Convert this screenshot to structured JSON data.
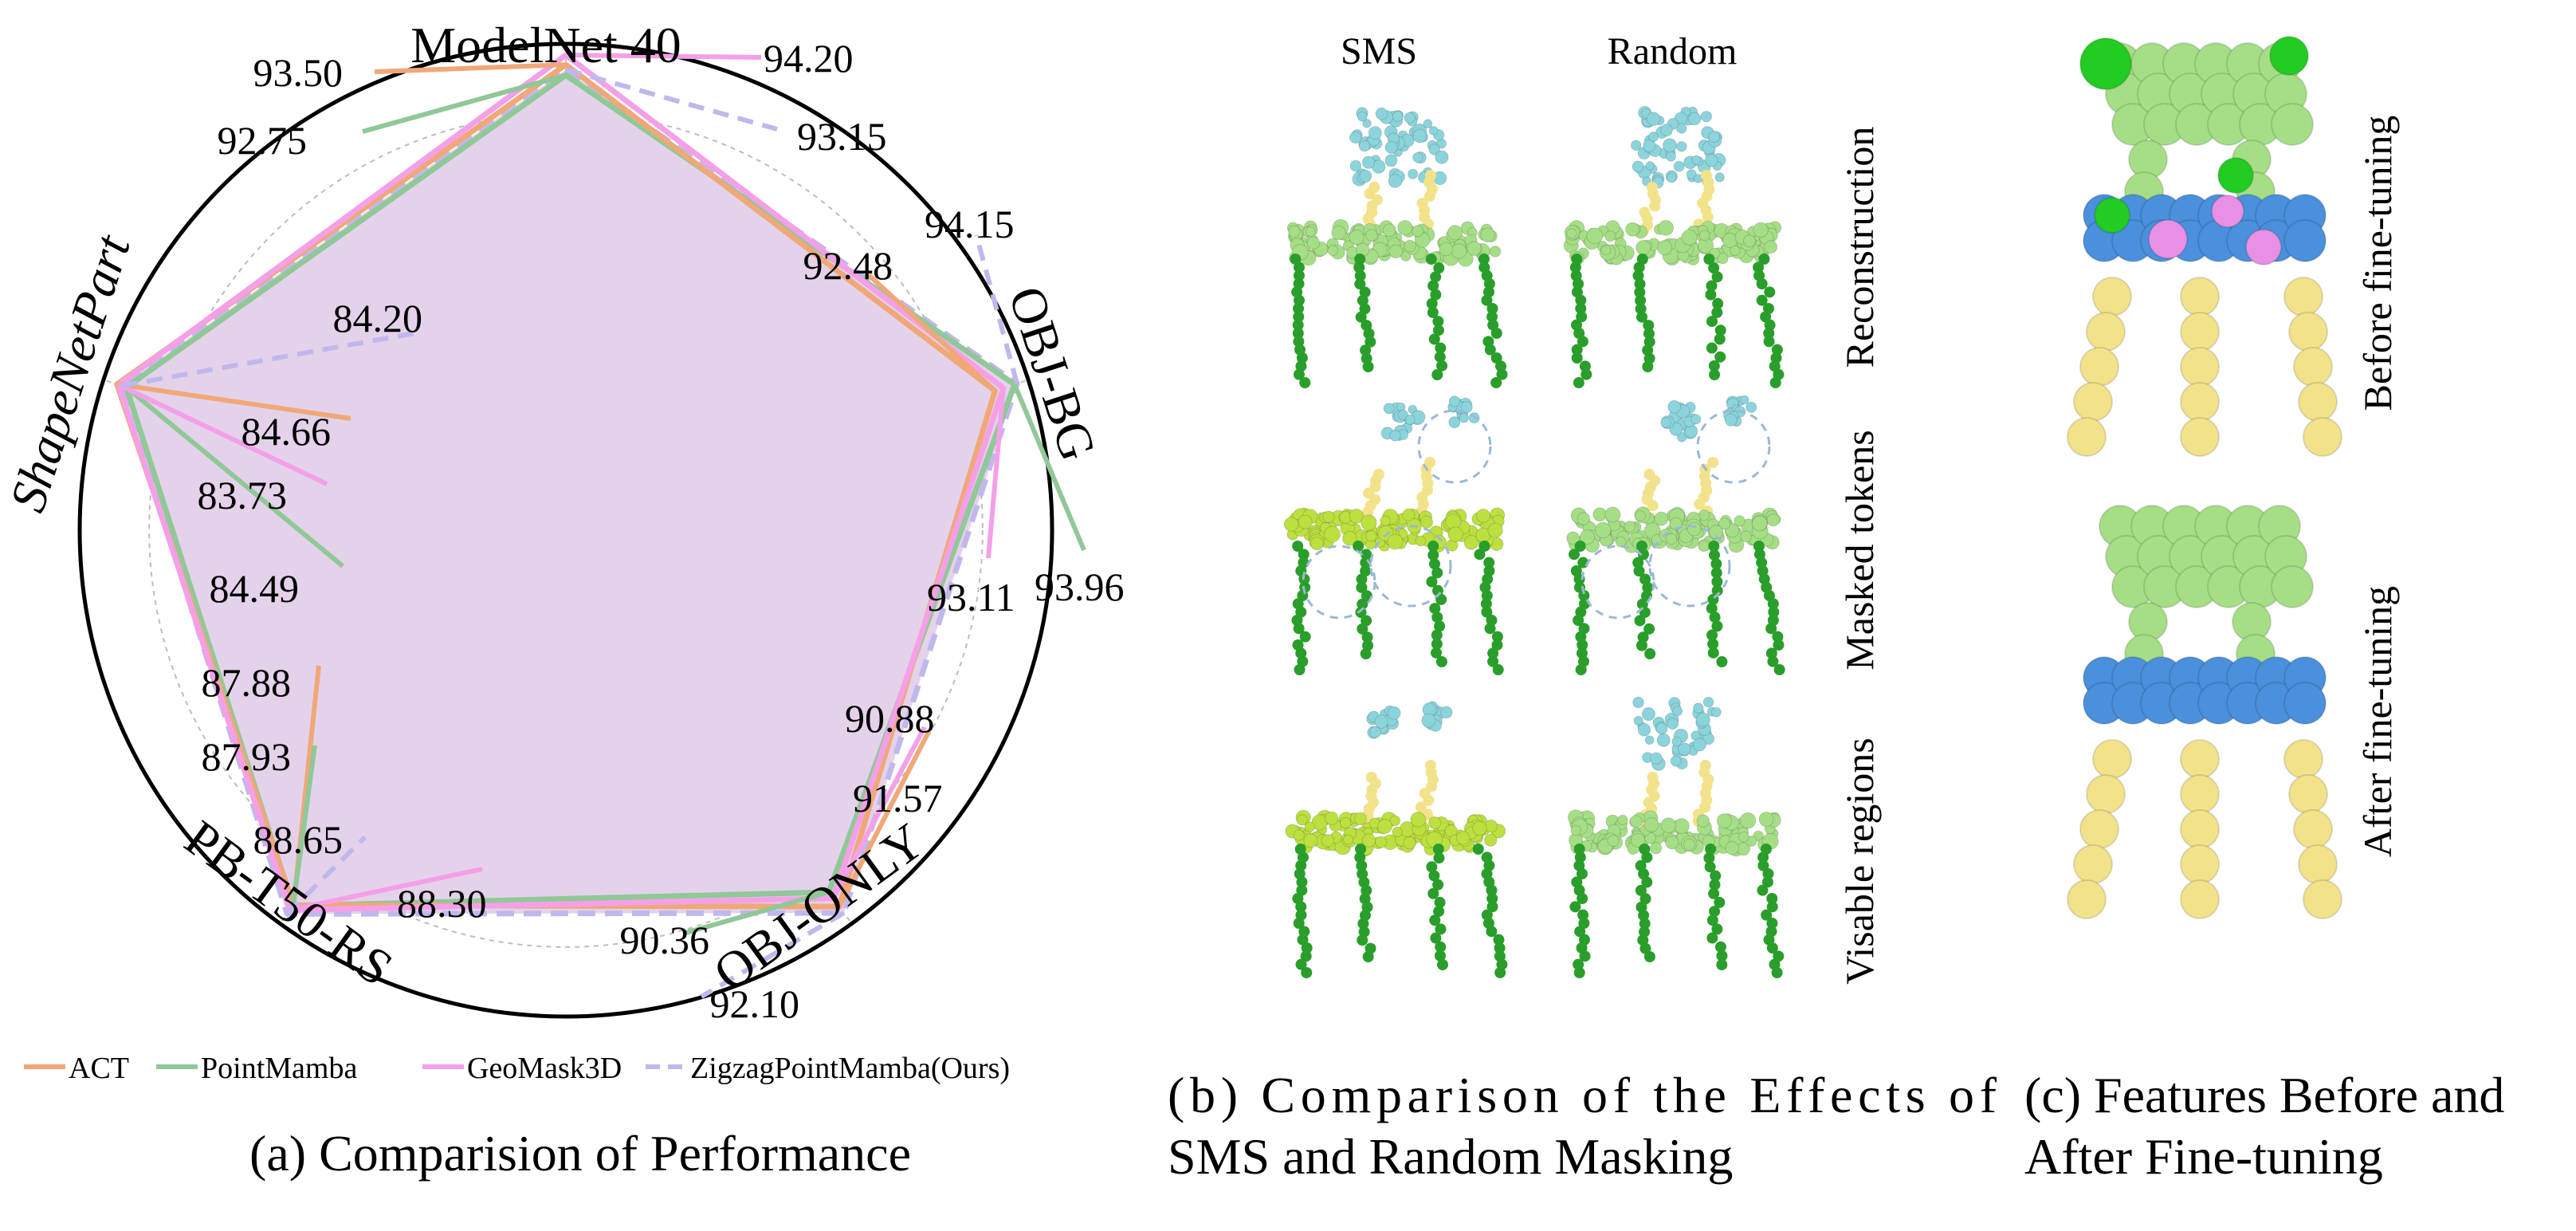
{
  "chart_data": {
    "type": "radar",
    "axes": [
      "ModelNet 40",
      "OBJ-BG",
      "OBJ-ONLY",
      "PB-T50-RS",
      "ShapeNetPart"
    ],
    "series": [
      {
        "name": "ACT",
        "values": [
          93.5,
          92.48,
          91.57,
          87.88,
          84.66
        ]
      },
      {
        "name": "PointMamba",
        "values": [
          92.75,
          93.96,
          90.36,
          87.93,
          83.73
        ]
      },
      {
        "name": "GeoMask3D",
        "values": [
          94.2,
          93.11,
          90.88,
          88.3,
          84.49
        ]
      },
      {
        "name": "ZigzagPointMamba(Ours)",
        "values": [
          93.15,
          94.15,
          92.1,
          88.65,
          84.2
        ]
      }
    ],
    "legend_position": "bottom"
  },
  "colors": {
    "ACT": "#f0a878",
    "PointMamba": "#90c898",
    "GeoMask3D": "#f4a0e8",
    "Ours": "#c0b8ec",
    "fill": "#e4d2ea",
    "teal": "#8cd4dc",
    "yellow": "#f2e28a",
    "green_light": "#a6de86",
    "green_dark": "#2a9e2a",
    "blue": "#4a90dc",
    "pink": "#e890e4",
    "lime": "#bce040"
  },
  "panel_b": {
    "col_headers": [
      "SMS",
      "Random"
    ],
    "row_labels": [
      "Reconstruction",
      "Masked tokens",
      "Visable regions"
    ]
  },
  "panel_c": {
    "row_labels": [
      "Before fine-tuning",
      "After fine-tuning"
    ]
  },
  "captions": {
    "a": "(a) Comparision of Performance",
    "b_line1": "(b) Comparison of the Effects of",
    "b_line2": "SMS and Random Masking",
    "c_line1": "(c) Features Before and",
    "c_line2": "After Fine-tuning"
  }
}
